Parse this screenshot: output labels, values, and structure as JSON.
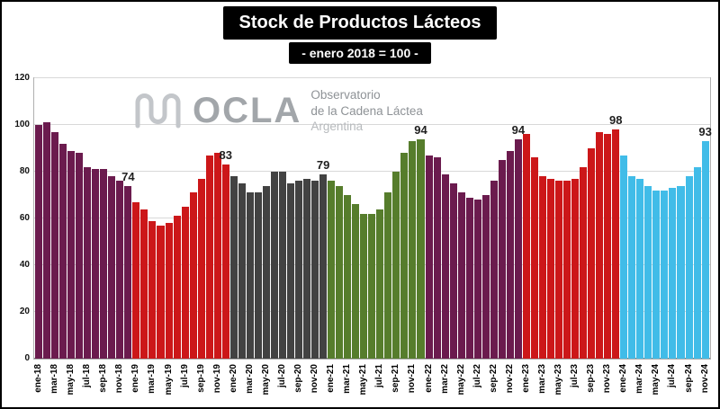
{
  "header": {
    "title": "Stock de Productos Lácteos",
    "subtitle": "- enero 2018 = 100 -"
  },
  "watermark": {
    "acronym": "OCLA",
    "line1": "Observatorio",
    "line2": "de la Cadena Láctea",
    "line3": "Argentina"
  },
  "chart_data": {
    "type": "bar",
    "title": "Stock de Productos Lácteos",
    "subtitle": "- enero 2018 = 100 -",
    "xlabel": "",
    "ylabel": "",
    "ylim": [
      0,
      120
    ],
    "yticks": [
      0,
      20,
      40,
      60,
      80,
      100,
      120
    ],
    "grid": true,
    "legend": false,
    "xtick_step": 2,
    "categories": [
      "ene-18",
      "feb-18",
      "mar-18",
      "abr-18",
      "may-18",
      "jun-18",
      "jul-18",
      "ago-18",
      "sep-18",
      "oct-18",
      "nov-18",
      "dic-18",
      "ene-19",
      "feb-19",
      "mar-19",
      "abr-19",
      "may-19",
      "jun-19",
      "jul-19",
      "ago-19",
      "sep-19",
      "oct-19",
      "nov-19",
      "dic-19",
      "ene-20",
      "feb-20",
      "mar-20",
      "abr-20",
      "may-20",
      "jun-20",
      "jul-20",
      "ago-20",
      "sep-20",
      "oct-20",
      "nov-20",
      "dic-20",
      "ene-21",
      "feb-21",
      "mar-21",
      "abr-21",
      "may-21",
      "jun-21",
      "jul-21",
      "ago-21",
      "sep-21",
      "oct-21",
      "nov-21",
      "dic-21",
      "ene-22",
      "feb-22",
      "mar-22",
      "abr-22",
      "may-22",
      "jun-22",
      "jul-22",
      "ago-22",
      "sep-22",
      "oct-22",
      "nov-22",
      "dic-22",
      "ene-23",
      "feb-23",
      "mar-23",
      "abr-23",
      "may-23",
      "jun-23",
      "jul-23",
      "ago-23",
      "sep-23",
      "oct-23",
      "nov-23",
      "dic-23",
      "ene-24",
      "feb-24",
      "mar-24",
      "abr-24",
      "may-24",
      "jun-24",
      "jul-24",
      "ago-24",
      "sep-24",
      "oct-24",
      "nov-24"
    ],
    "values": [
      100,
      101,
      97,
      92,
      89,
      88,
      82,
      81,
      81,
      78,
      76,
      74,
      67,
      64,
      59,
      57,
      58,
      61,
      65,
      71,
      77,
      87,
      88,
      83,
      78,
      75,
      71,
      71,
      74,
      80,
      80,
      75,
      76,
      77,
      76,
      79,
      76,
      74,
      70,
      66,
      62,
      62,
      64,
      71,
      80,
      88,
      93,
      94,
      87,
      86,
      79,
      75,
      71,
      69,
      68,
      70,
      76,
      85,
      89,
      94,
      96,
      86,
      78,
      77,
      76,
      76,
      77,
      82,
      90,
      97,
      96,
      98,
      87,
      78,
      77,
      74,
      72,
      72,
      73,
      74,
      78,
      82,
      93
    ],
    "year_colors": {
      "2018": "#6b1b4e",
      "2019": "#cc1719",
      "2020": "#424242",
      "2021": "#567d2c",
      "2022": "#6b1b4e",
      "2023": "#cc1719",
      "2024": "#41bce8"
    },
    "annotations": [
      {
        "category": "dic-18",
        "value": 74
      },
      {
        "category": "dic-19",
        "value": 83
      },
      {
        "category": "dic-20",
        "value": 79
      },
      {
        "category": "dic-21",
        "value": 94
      },
      {
        "category": "dic-22",
        "value": 94
      },
      {
        "category": "dic-23",
        "value": 98
      },
      {
        "category": "nov-24",
        "value": 93
      }
    ]
  }
}
